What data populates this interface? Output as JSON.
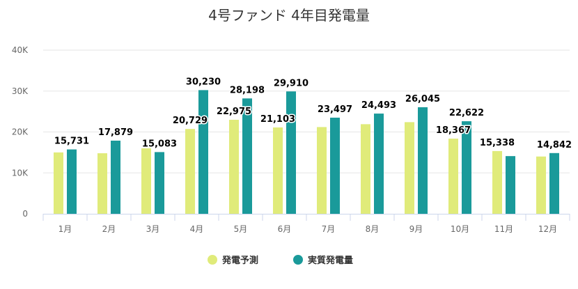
{
  "chart_data": {
    "type": "bar",
    "title": "4号ファンド 4年目発電量",
    "categories": [
      "1月",
      "2月",
      "3月",
      "4月",
      "5月",
      "6月",
      "7月",
      "8月",
      "9月",
      "10月",
      "11月",
      "12月"
    ],
    "series": [
      {
        "name": "発電予測",
        "color": "#e0eb7a",
        "values": [
          15000,
          14800,
          16000,
          20729,
          22975,
          21103,
          21200,
          21900,
          22400,
          18367,
          15338,
          14000
        ]
      },
      {
        "name": "実質発電量",
        "color": "#1a9a9a",
        "values": [
          15731,
          17879,
          15083,
          30230,
          28198,
          29910,
          23497,
          24493,
          26045,
          22622,
          14100,
          14842
        ]
      }
    ],
    "data_labels": [
      {
        "category": "1月",
        "series": "実質発電量",
        "text": "15,731"
      },
      {
        "category": "2月",
        "series": "実質発電量",
        "text": "17,879"
      },
      {
        "category": "3月",
        "series": "実質発電量",
        "text": "15,083"
      },
      {
        "category": "4月",
        "series": "発電予測",
        "text": "20,729"
      },
      {
        "category": "4月",
        "series": "実質発電量",
        "text": "30,230"
      },
      {
        "category": "5月",
        "series": "発電予測",
        "text": "22,975"
      },
      {
        "category": "5月",
        "series": "実質発電量",
        "text": "28,198"
      },
      {
        "category": "6月",
        "series": "発電予測",
        "text": "21,103"
      },
      {
        "category": "6月",
        "series": "実質発電量",
        "text": "29,910"
      },
      {
        "category": "7月",
        "series": "実質発電量",
        "text": "23,497"
      },
      {
        "category": "8月",
        "series": "実質発電量",
        "text": "24,493"
      },
      {
        "category": "9月",
        "series": "実質発電量",
        "text": "26,045"
      },
      {
        "category": "10月",
        "series": "発電予測",
        "text": "18,367"
      },
      {
        "category": "10月",
        "series": "実質発電量",
        "text": "22,622"
      },
      {
        "category": "11月",
        "series": "発電予測",
        "text": "15,338"
      },
      {
        "category": "12月",
        "series": "実質発電量",
        "text": "14,842"
      }
    ],
    "ylim": [
      0,
      40000
    ],
    "yticks": [
      {
        "value": 0,
        "label": "0"
      },
      {
        "value": 10000,
        "label": "10K"
      },
      {
        "value": 20000,
        "label": "20K"
      },
      {
        "value": 30000,
        "label": "30K"
      },
      {
        "value": 40000,
        "label": "40K"
      }
    ],
    "grid": true,
    "legend_position": "bottom-center",
    "xlabel": "",
    "ylabel": ""
  }
}
